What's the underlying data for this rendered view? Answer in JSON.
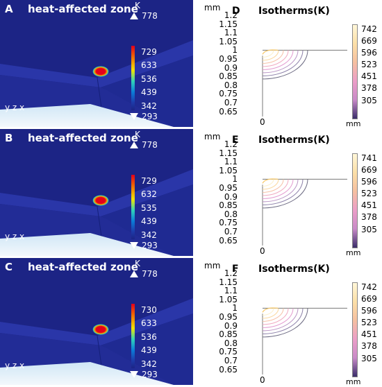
{
  "panels": [
    {
      "sim": {
        "letter": "A",
        "title": "heat-affected zone",
        "unit": "K",
        "max": "778",
        "min": "293",
        "ticks": [
          "729",
          "633",
          "536",
          "439",
          "342"
        ],
        "axes": "y z x"
      },
      "iso": {
        "letter": "D",
        "title": "Isotherms(K)",
        "unit": "mm",
        "yticks": [
          "1.2",
          "1.15",
          "1.1",
          "1.05",
          "1",
          "0.95",
          "0.9",
          "0.85",
          "0.8",
          "0.75",
          "0.7",
          "0.65"
        ],
        "xtick": "0",
        "xunit": "mm",
        "legend": [
          "742",
          "669",
          "596",
          "523",
          "451",
          "378",
          "305"
        ]
      }
    },
    {
      "sim": {
        "letter": "B",
        "title": "heat-affected zone",
        "unit": "K",
        "max": "778",
        "min": "293",
        "ticks": [
          "729",
          "632",
          "535",
          "439",
          "342"
        ],
        "axes": "y z x"
      },
      "iso": {
        "letter": "E",
        "title": "Isotherms(K)",
        "unit": "mm",
        "yticks": [
          "1.2",
          "1.15",
          "1.1",
          "1.05",
          "1",
          "0.95",
          "0.9",
          "0.85",
          "0.8",
          "0.75",
          "0.7",
          "0.65"
        ],
        "xtick": "0",
        "xunit": "mm",
        "legend": [
          "741",
          "669",
          "596",
          "523",
          "451",
          "378",
          "305"
        ]
      }
    },
    {
      "sim": {
        "letter": "C",
        "title": "heat-affected zone",
        "unit": "K",
        "max": "778",
        "min": "293",
        "ticks": [
          "730",
          "633",
          "536",
          "439",
          "342"
        ],
        "axes": "y z x"
      },
      "iso": {
        "letter": "F",
        "title": "Isotherms(K)",
        "unit": "mm",
        "yticks": [
          "1.2",
          "1.15",
          "1.1",
          "1.05",
          "1",
          "0.95",
          "0.9",
          "0.85",
          "0.8",
          "0.75",
          "0.7",
          "0.65"
        ],
        "xtick": "0",
        "xunit": "mm",
        "legend": [
          "742",
          "669",
          "596",
          "523",
          "451",
          "378",
          "305"
        ]
      }
    }
  ],
  "colors": {
    "sim_bg": "#1c2485",
    "hot": "#e4001a",
    "substrate": "#2a36a8",
    "edge_glow": "#dfeef7"
  }
}
